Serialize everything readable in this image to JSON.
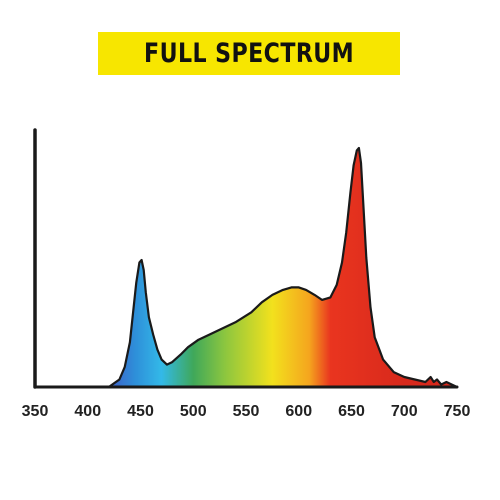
{
  "banner": {
    "title": "FULL SPECTRUM",
    "background": "#f7e600"
  },
  "chart_data": {
    "type": "area",
    "title": "FULL SPECTRUM",
    "xlabel": "",
    "ylabel": "",
    "xlim": [
      350,
      750
    ],
    "ylim": [
      0,
      1
    ],
    "grid": false,
    "x_ticks": [
      350,
      400,
      450,
      500,
      550,
      600,
      650,
      700,
      750
    ],
    "x_tick_labels": [
      "350",
      "400",
      "450",
      "500",
      "550",
      "600",
      "650",
      "700",
      "750"
    ],
    "series": [
      {
        "x": [
          420,
          430,
          435,
          440,
          443,
          446,
          449,
          451,
          453,
          455,
          458,
          462,
          466,
          470,
          475,
          480,
          488,
          495,
          505,
          515,
          525,
          540,
          555,
          565,
          575,
          585,
          593,
          600,
          607,
          615,
          622,
          630,
          636,
          641,
          645,
          649,
          652,
          655,
          657,
          659,
          661,
          664,
          668,
          672,
          680,
          690,
          700,
          710,
          720,
          725,
          728,
          731,
          735,
          740,
          745,
          750
        ],
        "y": [
          0.0,
          0.03,
          0.08,
          0.18,
          0.3,
          0.42,
          0.5,
          0.51,
          0.47,
          0.38,
          0.28,
          0.21,
          0.15,
          0.11,
          0.09,
          0.1,
          0.13,
          0.16,
          0.19,
          0.21,
          0.23,
          0.26,
          0.3,
          0.34,
          0.37,
          0.39,
          0.4,
          0.4,
          0.39,
          0.37,
          0.35,
          0.36,
          0.41,
          0.5,
          0.62,
          0.78,
          0.89,
          0.95,
          0.96,
          0.9,
          0.75,
          0.52,
          0.32,
          0.2,
          0.11,
          0.06,
          0.04,
          0.03,
          0.02,
          0.04,
          0.02,
          0.03,
          0.01,
          0.02,
          0.01,
          0.0
        ]
      }
    ]
  },
  "colors": {
    "stroke": "#1a1a1a",
    "violet": "#3f5fc8",
    "blue": "#2e8fd9",
    "cyan": "#33b9e8",
    "green": "#3fa85a",
    "lime": "#8cc63f",
    "yellow": "#f2e11d",
    "orange": "#f5a51e",
    "red": "#e9351f",
    "deep_red": "#d8291c"
  }
}
